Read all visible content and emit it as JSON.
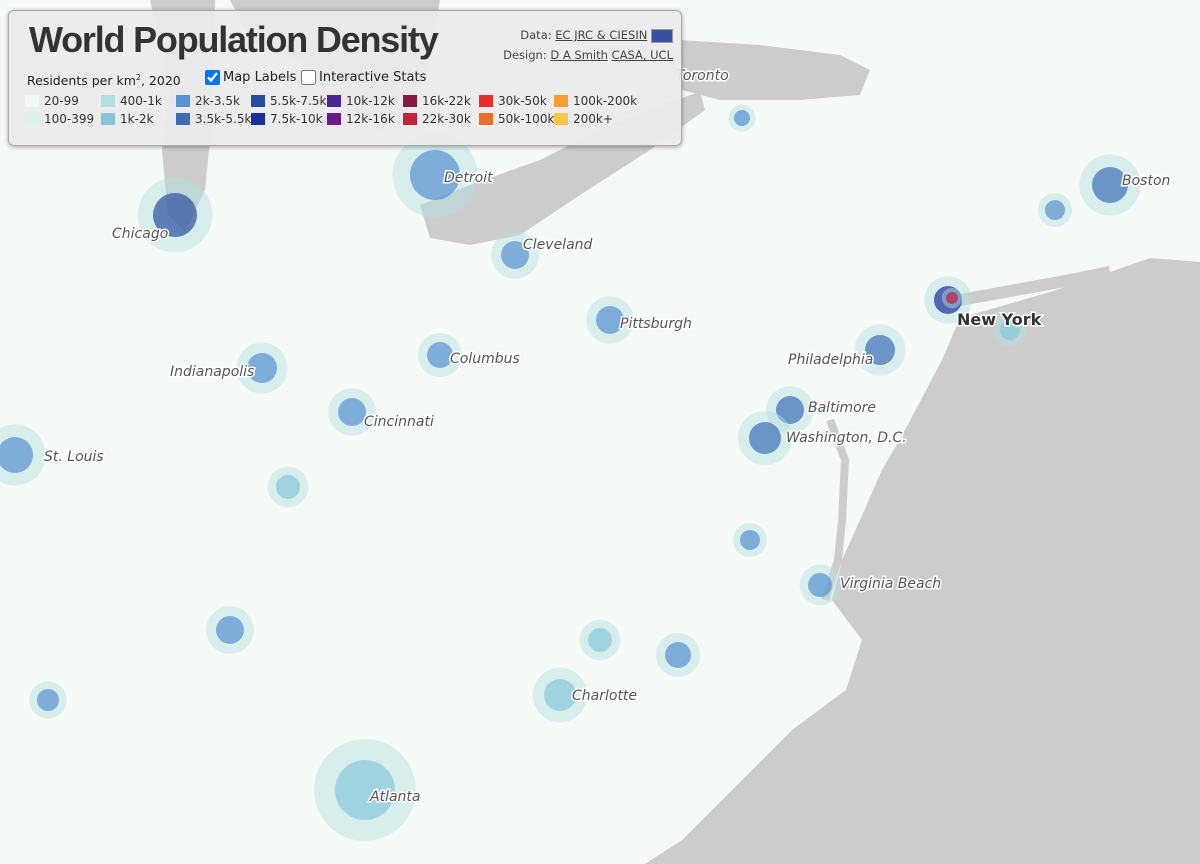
{
  "header": {
    "title": "World Population Density"
  },
  "credits": {
    "data_label": "Data:",
    "data_link": "EC JRC & CIESIN",
    "design_label": "Design:",
    "design_link_1": "D A Smith",
    "design_link_2": "CASA, UCL"
  },
  "legend": {
    "title": "Residents per km",
    "title_sup": "2",
    "title_suffix": ", 2020",
    "items": [
      {
        "label": "20-99",
        "color": "#eef8f2"
      },
      {
        "label": "100-399",
        "color": "#dcf1e8"
      },
      {
        "label": "400-1k",
        "color": "#b2e0e0"
      },
      {
        "label": "1k-2k",
        "color": "#88c7da"
      },
      {
        "label": "2k-3.5k",
        "color": "#5a92d0"
      },
      {
        "label": "3.5k-5.5k",
        "color": "#3d6db6"
      },
      {
        "label": "5.5k-7.5k",
        "color": "#284c9c"
      },
      {
        "label": "7.5k-10k",
        "color": "#1c2e9c"
      },
      {
        "label": "10k-12k",
        "color": "#482690"
      },
      {
        "label": "12k-16k",
        "color": "#6b1a88"
      },
      {
        "label": "16k-22k",
        "color": "#8a1846"
      },
      {
        "label": "22k-30k",
        "color": "#c0233b"
      },
      {
        "label": "30k-50k",
        "color": "#e5302a"
      },
      {
        "label": "50k-100k",
        "color": "#ee6d2e"
      },
      {
        "label": "100k-200k",
        "color": "#f3a032"
      },
      {
        "label": "200k+",
        "color": "#f6c744"
      }
    ]
  },
  "controls": [
    {
      "label": "Map Labels",
      "checked": true
    },
    {
      "label": "Interactive Stats",
      "checked": false
    }
  ],
  "cities": [
    "Toronto",
    "Detroit",
    "Chicago",
    "Boston",
    "Cleveland",
    "New York",
    "Pittsburgh",
    "Philadelphia",
    "Columbus",
    "Indianapolis",
    "Baltimore",
    "Cincinnati",
    "Washington, D.C.",
    "St. Louis",
    "Virginia Beach",
    "Charlotte",
    "Atlanta"
  ]
}
